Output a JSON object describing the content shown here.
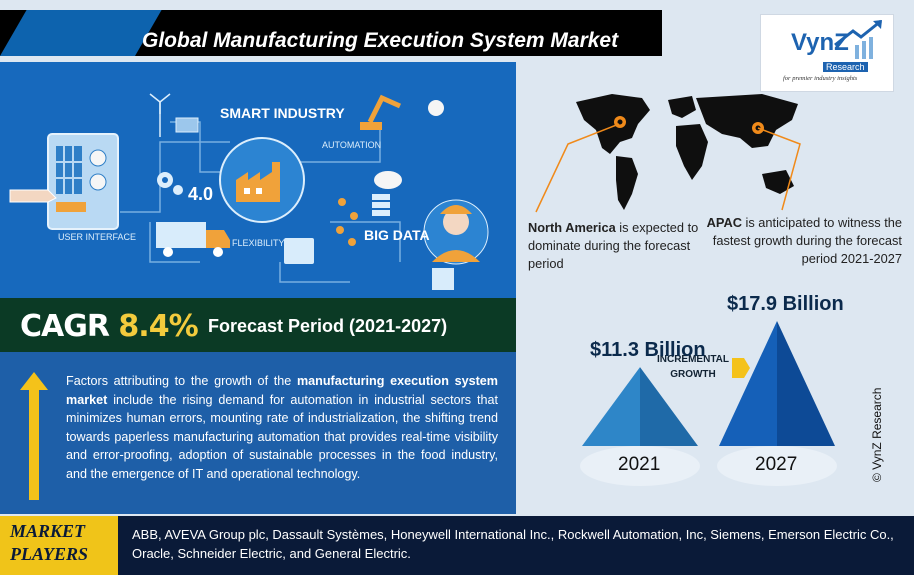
{
  "title": "Global Manufacturing Execution System Market",
  "logo": {
    "name": "VynZ",
    "sub": "Research",
    "tagline": "for premier industry insights"
  },
  "hero": {
    "smart_industry": "SMART INDUSTRY",
    "automation": "AUTOMATION",
    "user_interface": "USER INTERFACE",
    "flexibility": "FLEXIBILITY",
    "big_data": "BIG DATA",
    "four_point_zero": "4.0"
  },
  "cagr": {
    "label": "CAGR",
    "value": "8.4%"
  },
  "forecast_period": "Forecast Period (2021-2027)",
  "description": {
    "part1": "Factors attributing to the growth of the ",
    "bold": "manufacturing execution system market",
    "part2": " include the rising demand for automation in industrial sectors that minimizes human errors, mounting rate of industrialization, the shifting trend towards paperless manufacturing automation that provides real-time visibility and error-proofing, adoption of sustainable processes in the food industry, and the emergence of IT and operational technology."
  },
  "regions": {
    "na_bold": "North America",
    "na_rest": " is expected to dominate during the forecast period",
    "apac_bold": "APAC",
    "apac_rest": " is anticipated to witness the fastest growth during the forecast period 2021-2027"
  },
  "chart_data": {
    "type": "bar",
    "categories": [
      "2021",
      "2027"
    ],
    "values": [
      11.3,
      17.9
    ],
    "value_labels": [
      "$11.3 Billion",
      "$17.9 Billion"
    ],
    "unit": "Billion USD",
    "annotation": "INCREMENTAL GROWTH"
  },
  "copyright": "© VynZ Research",
  "market_players": {
    "label_line1": "MARKET",
    "label_line2": "PLAYERS",
    "list": "ABB, AVEVA Group plc, Dassault Systèmes, Honeywell International Inc., Rockwell Automation, Inc, Siemens, Emerson Electric Co., Oracle, Schneider Electric, and General Electric."
  },
  "colors": {
    "title_bg": "#000000",
    "hero_bg": "#1769bd",
    "cagr_bg": "#0b3a25",
    "cagr_accent": "#f3cb3d",
    "desc_bg": "#1e5fa8",
    "players_bg": "#0a1a38",
    "players_label_bg": "#f0c419",
    "bar_2021": "#2e86c8",
    "bar_2027": "#1560b8"
  }
}
